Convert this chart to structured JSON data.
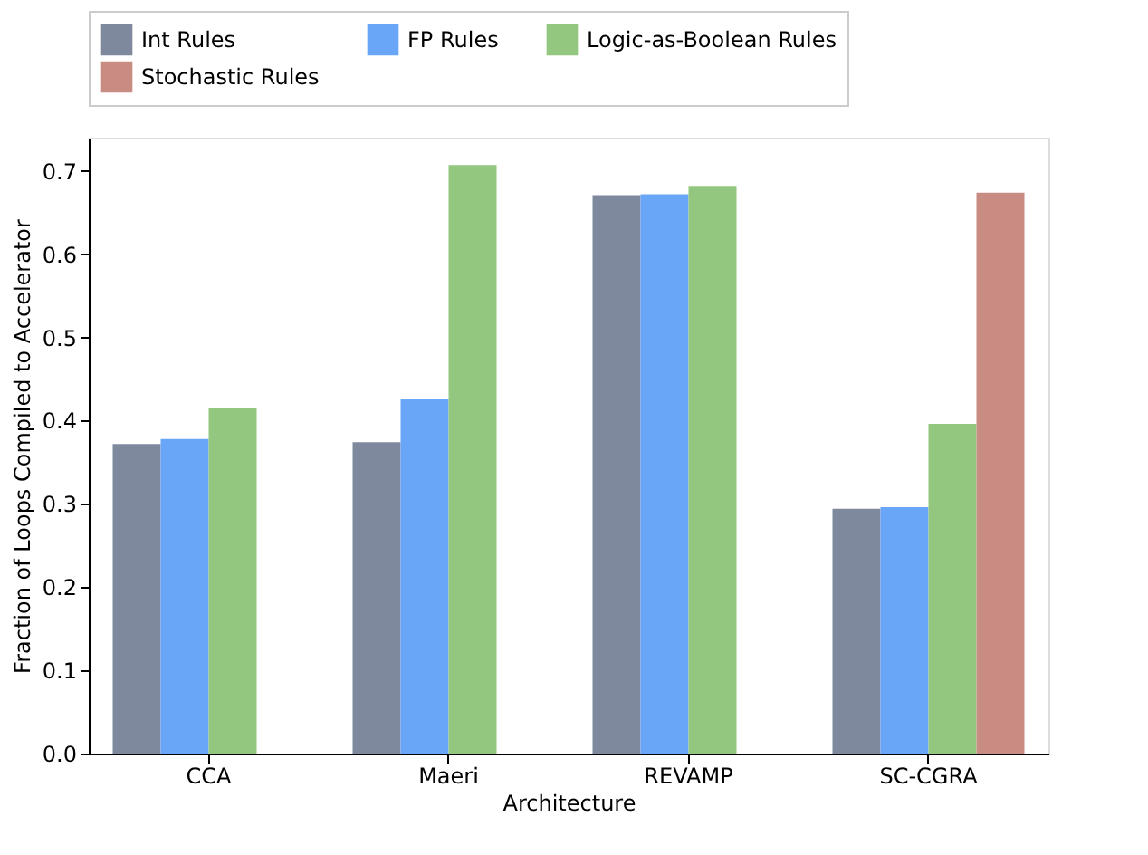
{
  "chart_data": {
    "type": "bar",
    "xlabel": "Architecture",
    "ylabel": "Fraction of Loops Compiled to Accelerator",
    "categories": [
      "CCA",
      "Maeri",
      "REVAMP",
      "SC-CGRA"
    ],
    "series": [
      {
        "name": "Int Rules",
        "color": "#7f899e",
        "values": [
          0.372,
          0.374,
          0.671,
          0.294
        ]
      },
      {
        "name": "FP Rules",
        "color": "#6aa6f8",
        "values": [
          0.378,
          0.426,
          0.672,
          0.296
        ]
      },
      {
        "name": "Logic-as-Boolean Rules",
        "color": "#93c77f",
        "values": [
          0.415,
          0.707,
          0.682,
          0.396
        ]
      },
      {
        "name": "Stochastic Rules",
        "color": "#c98c82",
        "values": [
          0,
          0,
          0,
          0.674
        ]
      }
    ],
    "ylim": [
      0,
      0.74
    ],
    "yticks": [
      {
        "value": 0,
        "label": "0.0"
      },
      0.1,
      0.2,
      0.3,
      0.4,
      0.5,
      0.6,
      0.7
    ],
    "grid": false,
    "legend": "top"
  }
}
